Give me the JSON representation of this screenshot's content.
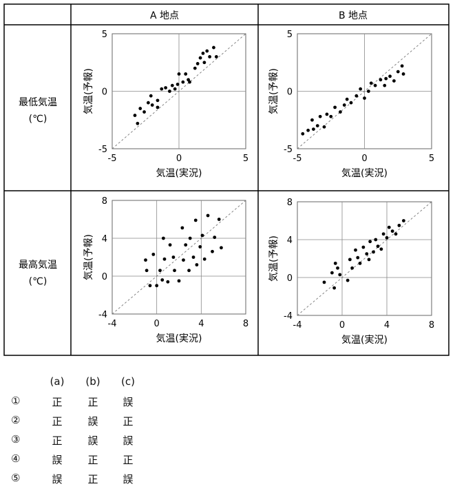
{
  "table": {
    "col_headers": [
      "A 地点",
      "B 地点"
    ],
    "row_headers": [
      {
        "line1": "最低気温",
        "line2": "(℃)"
      },
      {
        "line1": "最高気温",
        "line2": "(℃)"
      }
    ]
  },
  "chart_data": [
    {
      "type": "scatter",
      "panel": "A-min",
      "xlabel": "気温(実況)",
      "ylabel": "気温(予報)",
      "xlim": [
        -5,
        5
      ],
      "ylim": [
        -5,
        5
      ],
      "xticks": [
        "-5",
        "0",
        "5"
      ],
      "yticks": [
        "-5",
        "0",
        "5"
      ],
      "grid": true,
      "reference_line": "y=x",
      "points": [
        [
          -3.1,
          -2.8
        ],
        [
          -3.3,
          -2.1
        ],
        [
          -2.9,
          -1.5
        ],
        [
          -2.6,
          -1.8
        ],
        [
          -2.3,
          -1.0
        ],
        [
          -2.1,
          -0.4
        ],
        [
          -2.0,
          -1.2
        ],
        [
          -1.6,
          -1.4
        ],
        [
          -1.6,
          -0.8
        ],
        [
          -1.3,
          0.2
        ],
        [
          -1.0,
          0.3
        ],
        [
          -0.7,
          0.0
        ],
        [
          -0.5,
          0.5
        ],
        [
          -0.3,
          0.2
        ],
        [
          -0.1,
          0.6
        ],
        [
          0.0,
          1.5
        ],
        [
          0.3,
          0.8
        ],
        [
          0.5,
          1.5
        ],
        [
          0.7,
          1.0
        ],
        [
          0.8,
          0.8
        ],
        [
          1.2,
          2.0
        ],
        [
          1.4,
          2.4
        ],
        [
          1.6,
          2.9
        ],
        [
          1.8,
          3.3
        ],
        [
          1.9,
          2.5
        ],
        [
          2.1,
          3.5
        ],
        [
          2.3,
          3.0
        ],
        [
          2.6,
          3.8
        ],
        [
          2.8,
          3.0
        ]
      ]
    },
    {
      "type": "scatter",
      "panel": "B-min",
      "xlabel": "気温(実況)",
      "ylabel": "気温(予報)",
      "xlim": [
        -5,
        5
      ],
      "ylim": [
        -5,
        5
      ],
      "xticks": [
        "-5",
        "0",
        "5"
      ],
      "yticks": [
        "-5",
        "0",
        "5"
      ],
      "grid": true,
      "reference_line": "y=x",
      "points": [
        [
          -4.6,
          -3.7
        ],
        [
          -4.2,
          -3.4
        ],
        [
          -3.8,
          -3.3
        ],
        [
          -3.9,
          -2.5
        ],
        [
          -3.5,
          -3.0
        ],
        [
          -3.3,
          -2.2
        ],
        [
          -3.0,
          -3.1
        ],
        [
          -2.8,
          -2.0
        ],
        [
          -2.5,
          -2.2
        ],
        [
          -2.2,
          -1.4
        ],
        [
          -1.8,
          -1.8
        ],
        [
          -1.5,
          -1.2
        ],
        [
          -1.3,
          -0.7
        ],
        [
          -1.0,
          -1.0
        ],
        [
          -0.6,
          -0.4
        ],
        [
          -0.3,
          0.2
        ],
        [
          0.0,
          -0.6
        ],
        [
          0.3,
          0.0
        ],
        [
          0.5,
          0.7
        ],
        [
          0.8,
          0.5
        ],
        [
          1.2,
          1.0
        ],
        [
          1.5,
          0.5
        ],
        [
          1.6,
          1.1
        ],
        [
          1.9,
          1.3
        ],
        [
          2.2,
          0.9
        ],
        [
          2.5,
          1.7
        ],
        [
          2.8,
          2.2
        ],
        [
          2.9,
          1.5
        ]
      ]
    },
    {
      "type": "scatter",
      "panel": "A-max",
      "xlabel": "気温(実況)",
      "ylabel": "気温(予報)",
      "xlim": [
        -4,
        8
      ],
      "ylim": [
        -4,
        8
      ],
      "xticks": [
        "-4",
        "0",
        "4",
        "8"
      ],
      "yticks": [
        "-4",
        "0",
        "4",
        "8"
      ],
      "grid": true,
      "reference_line": "y=x",
      "points": [
        [
          -1.0,
          1.7
        ],
        [
          -0.9,
          0.6
        ],
        [
          -0.6,
          -1.0
        ],
        [
          -0.3,
          2.3
        ],
        [
          0.0,
          -1.0
        ],
        [
          0.3,
          0.6
        ],
        [
          0.5,
          -0.4
        ],
        [
          0.6,
          4.0
        ],
        [
          0.7,
          1.8
        ],
        [
          1.0,
          -0.6
        ],
        [
          1.2,
          3.3
        ],
        [
          1.5,
          2.0
        ],
        [
          1.6,
          0.6
        ],
        [
          2.0,
          -0.5
        ],
        [
          2.3,
          5.1
        ],
        [
          2.4,
          1.7
        ],
        [
          2.6,
          3.3
        ],
        [
          2.9,
          0.6
        ],
        [
          3.0,
          4.0
        ],
        [
          3.3,
          2.0
        ],
        [
          3.5,
          5.9
        ],
        [
          3.6,
          1.2
        ],
        [
          3.9,
          3.1
        ],
        [
          4.1,
          4.3
        ],
        [
          4.3,
          1.8
        ],
        [
          4.6,
          6.4
        ],
        [
          5.0,
          2.6
        ],
        [
          5.2,
          4.1
        ],
        [
          5.6,
          6.0
        ],
        [
          5.8,
          3.0
        ]
      ]
    },
    {
      "type": "scatter",
      "panel": "B-max",
      "xlabel": "気温(実況)",
      "ylabel": "気温(予報)",
      "xlim": [
        -4,
        8
      ],
      "ylim": [
        -4,
        8
      ],
      "xticks": [
        "-4",
        "0",
        "4",
        "8"
      ],
      "yticks": [
        "-4",
        "0",
        "4",
        "8"
      ],
      "grid": true,
      "reference_line": "y=x",
      "points": [
        [
          -1.6,
          -0.5
        ],
        [
          -0.9,
          0.5
        ],
        [
          -0.7,
          -1.1
        ],
        [
          -0.6,
          1.5
        ],
        [
          -0.4,
          1.0
        ],
        [
          -0.2,
          0.3
        ],
        [
          0.5,
          -0.3
        ],
        [
          0.7,
          1.9
        ],
        [
          0.9,
          1.0
        ],
        [
          1.2,
          2.9
        ],
        [
          1.4,
          2.1
        ],
        [
          1.6,
          1.5
        ],
        [
          1.9,
          3.2
        ],
        [
          2.2,
          2.5
        ],
        [
          2.4,
          1.9
        ],
        [
          2.5,
          3.8
        ],
        [
          2.8,
          2.7
        ],
        [
          3.0,
          4.0
        ],
        [
          3.2,
          3.3
        ],
        [
          3.5,
          3.0
        ],
        [
          3.7,
          4.6
        ],
        [
          4.0,
          4.2
        ],
        [
          4.2,
          5.3
        ],
        [
          4.5,
          4.9
        ],
        [
          4.8,
          4.6
        ],
        [
          5.1,
          5.5
        ],
        [
          5.5,
          6.0
        ]
      ]
    }
  ],
  "options": {
    "headers": [
      "(a)",
      "(b)",
      "(c)"
    ],
    "rows": [
      {
        "num": "①",
        "a": "正",
        "b": "正",
        "c": "誤"
      },
      {
        "num": "②",
        "a": "正",
        "b": "誤",
        "c": "正"
      },
      {
        "num": "③",
        "a": "正",
        "b": "誤",
        "c": "誤"
      },
      {
        "num": "④",
        "a": "誤",
        "b": "正",
        "c": "正"
      },
      {
        "num": "⑤",
        "a": "誤",
        "b": "正",
        "c": "誤"
      }
    ]
  }
}
